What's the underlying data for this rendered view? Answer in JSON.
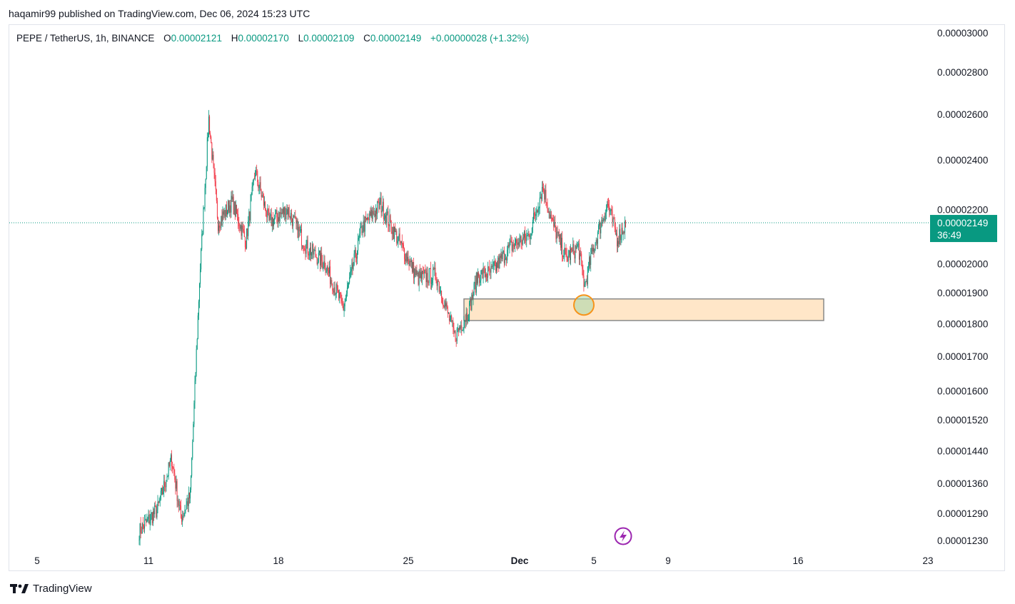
{
  "header": {
    "published_text": "haqamir99 published on TradingView.com, Dec 06, 2024 15:23 UTC"
  },
  "legend": {
    "symbol": "PEPE / TetherUS, 1h, BINANCE",
    "open_label": "O",
    "open_value": "0.00002121",
    "high_label": "H",
    "high_value": "0.00002170",
    "low_label": "L",
    "low_value": "0.00002109",
    "close_label": "C",
    "close_value": "0.00002149",
    "change": "+0.00000028 (+1.32%)"
  },
  "price_badge": {
    "price": "0.00002149",
    "countdown": "36:49",
    "color": "#089981"
  },
  "footer": {
    "brand": "TradingView"
  },
  "colors": {
    "up": "#089981",
    "down": "#f23645",
    "zone_fill": "#ffe6c8",
    "zone_border": "#888888",
    "circle": "#f7931a",
    "flash_icon": "#9c27b0"
  },
  "icons": [
    "tradingview-logo-icon",
    "flash-icon"
  ],
  "chart_data": {
    "type": "candlestick",
    "title": "",
    "scale": "log",
    "grid": false,
    "y_ticks": [
      "0.00003000",
      "0.00002800",
      "0.00002600",
      "0.00002400",
      "0.00002200",
      "0.00002000",
      "0.00001900",
      "0.00001800",
      "0.00001700",
      "0.00001600",
      "0.00001520",
      "0.00001440",
      "0.00001360",
      "0.00001290",
      "0.00001230"
    ],
    "x_ticks": [
      "5",
      "11",
      "18",
      "25",
      "Dec",
      "5",
      "9",
      "16",
      "23"
    ],
    "x_tick_dates": [
      "2024-11-05",
      "2024-11-11",
      "2024-11-18",
      "2024-11-25",
      "2024-12-01",
      "2024-12-05",
      "2024-12-09",
      "2024-12-16",
      "2024-12-23"
    ],
    "ylim": [
      1.21e-05,
      3.05e-05
    ],
    "last_price": 2.149e-05,
    "keypoints": [
      {
        "date": "2024-11-10",
        "price": 1.25e-05
      },
      {
        "date": "2024-11-11",
        "price": 1.3e-05
      },
      {
        "date": "2024-11-12",
        "price": 1.42e-05
      },
      {
        "date": "2024-11-12",
        "price": 1.28e-05
      },
      {
        "date": "2024-11-13",
        "price": 1.33e-05
      },
      {
        "date": "2024-11-13",
        "price": 1.94e-05
      },
      {
        "date": "2024-11-14",
        "price": 2.58e-05
      },
      {
        "date": "2024-11-14",
        "price": 2.15e-05
      },
      {
        "date": "2024-11-15",
        "price": 2.23e-05
      },
      {
        "date": "2024-11-16",
        "price": 2.08e-05
      },
      {
        "date": "2024-11-16",
        "price": 2.35e-05
      },
      {
        "date": "2024-11-17",
        "price": 2.15e-05
      },
      {
        "date": "2024-11-18",
        "price": 2.2e-05
      },
      {
        "date": "2024-11-19",
        "price": 2.06e-05
      },
      {
        "date": "2024-11-20",
        "price": 2e-05
      },
      {
        "date": "2024-11-21",
        "price": 1.85e-05
      },
      {
        "date": "2024-11-22",
        "price": 2.13e-05
      },
      {
        "date": "2024-11-23",
        "price": 2.22e-05
      },
      {
        "date": "2024-11-24",
        "price": 2.08e-05
      },
      {
        "date": "2024-11-25",
        "price": 1.95e-05
      },
      {
        "date": "2024-11-26",
        "price": 1.96e-05
      },
      {
        "date": "2024-11-27",
        "price": 1.76e-05
      },
      {
        "date": "2024-11-28",
        "price": 1.84e-05
      },
      {
        "date": "2024-11-28",
        "price": 1.96e-05
      },
      {
        "date": "2024-11-29",
        "price": 1.97e-05
      },
      {
        "date": "2024-11-30",
        "price": 2.06e-05
      },
      {
        "date": "2024-12-01",
        "price": 2.1e-05
      },
      {
        "date": "2024-12-02",
        "price": 2.29e-05
      },
      {
        "date": "2024-12-02",
        "price": 2.15e-05
      },
      {
        "date": "2024-12-03",
        "price": 2.02e-05
      },
      {
        "date": "2024-12-04",
        "price": 2.06e-05
      },
      {
        "date": "2024-12-04",
        "price": 1.92e-05
      },
      {
        "date": "2024-12-04",
        "price": 2.02e-05
      },
      {
        "date": "2024-12-05",
        "price": 2.12e-05
      },
      {
        "date": "2024-12-05",
        "price": 2.22e-05
      },
      {
        "date": "2024-12-06",
        "price": 2.09e-05
      },
      {
        "date": "2024-12-06",
        "price": 2.149e-05
      }
    ],
    "demand_zone": {
      "from_date": "2024-11-28",
      "to_date": "2024-12-17",
      "low": 1.81e-05,
      "high": 1.88e-05
    },
    "marker": {
      "date": "2024-12-04",
      "price": 1.86e-05,
      "shape": "circle"
    }
  }
}
